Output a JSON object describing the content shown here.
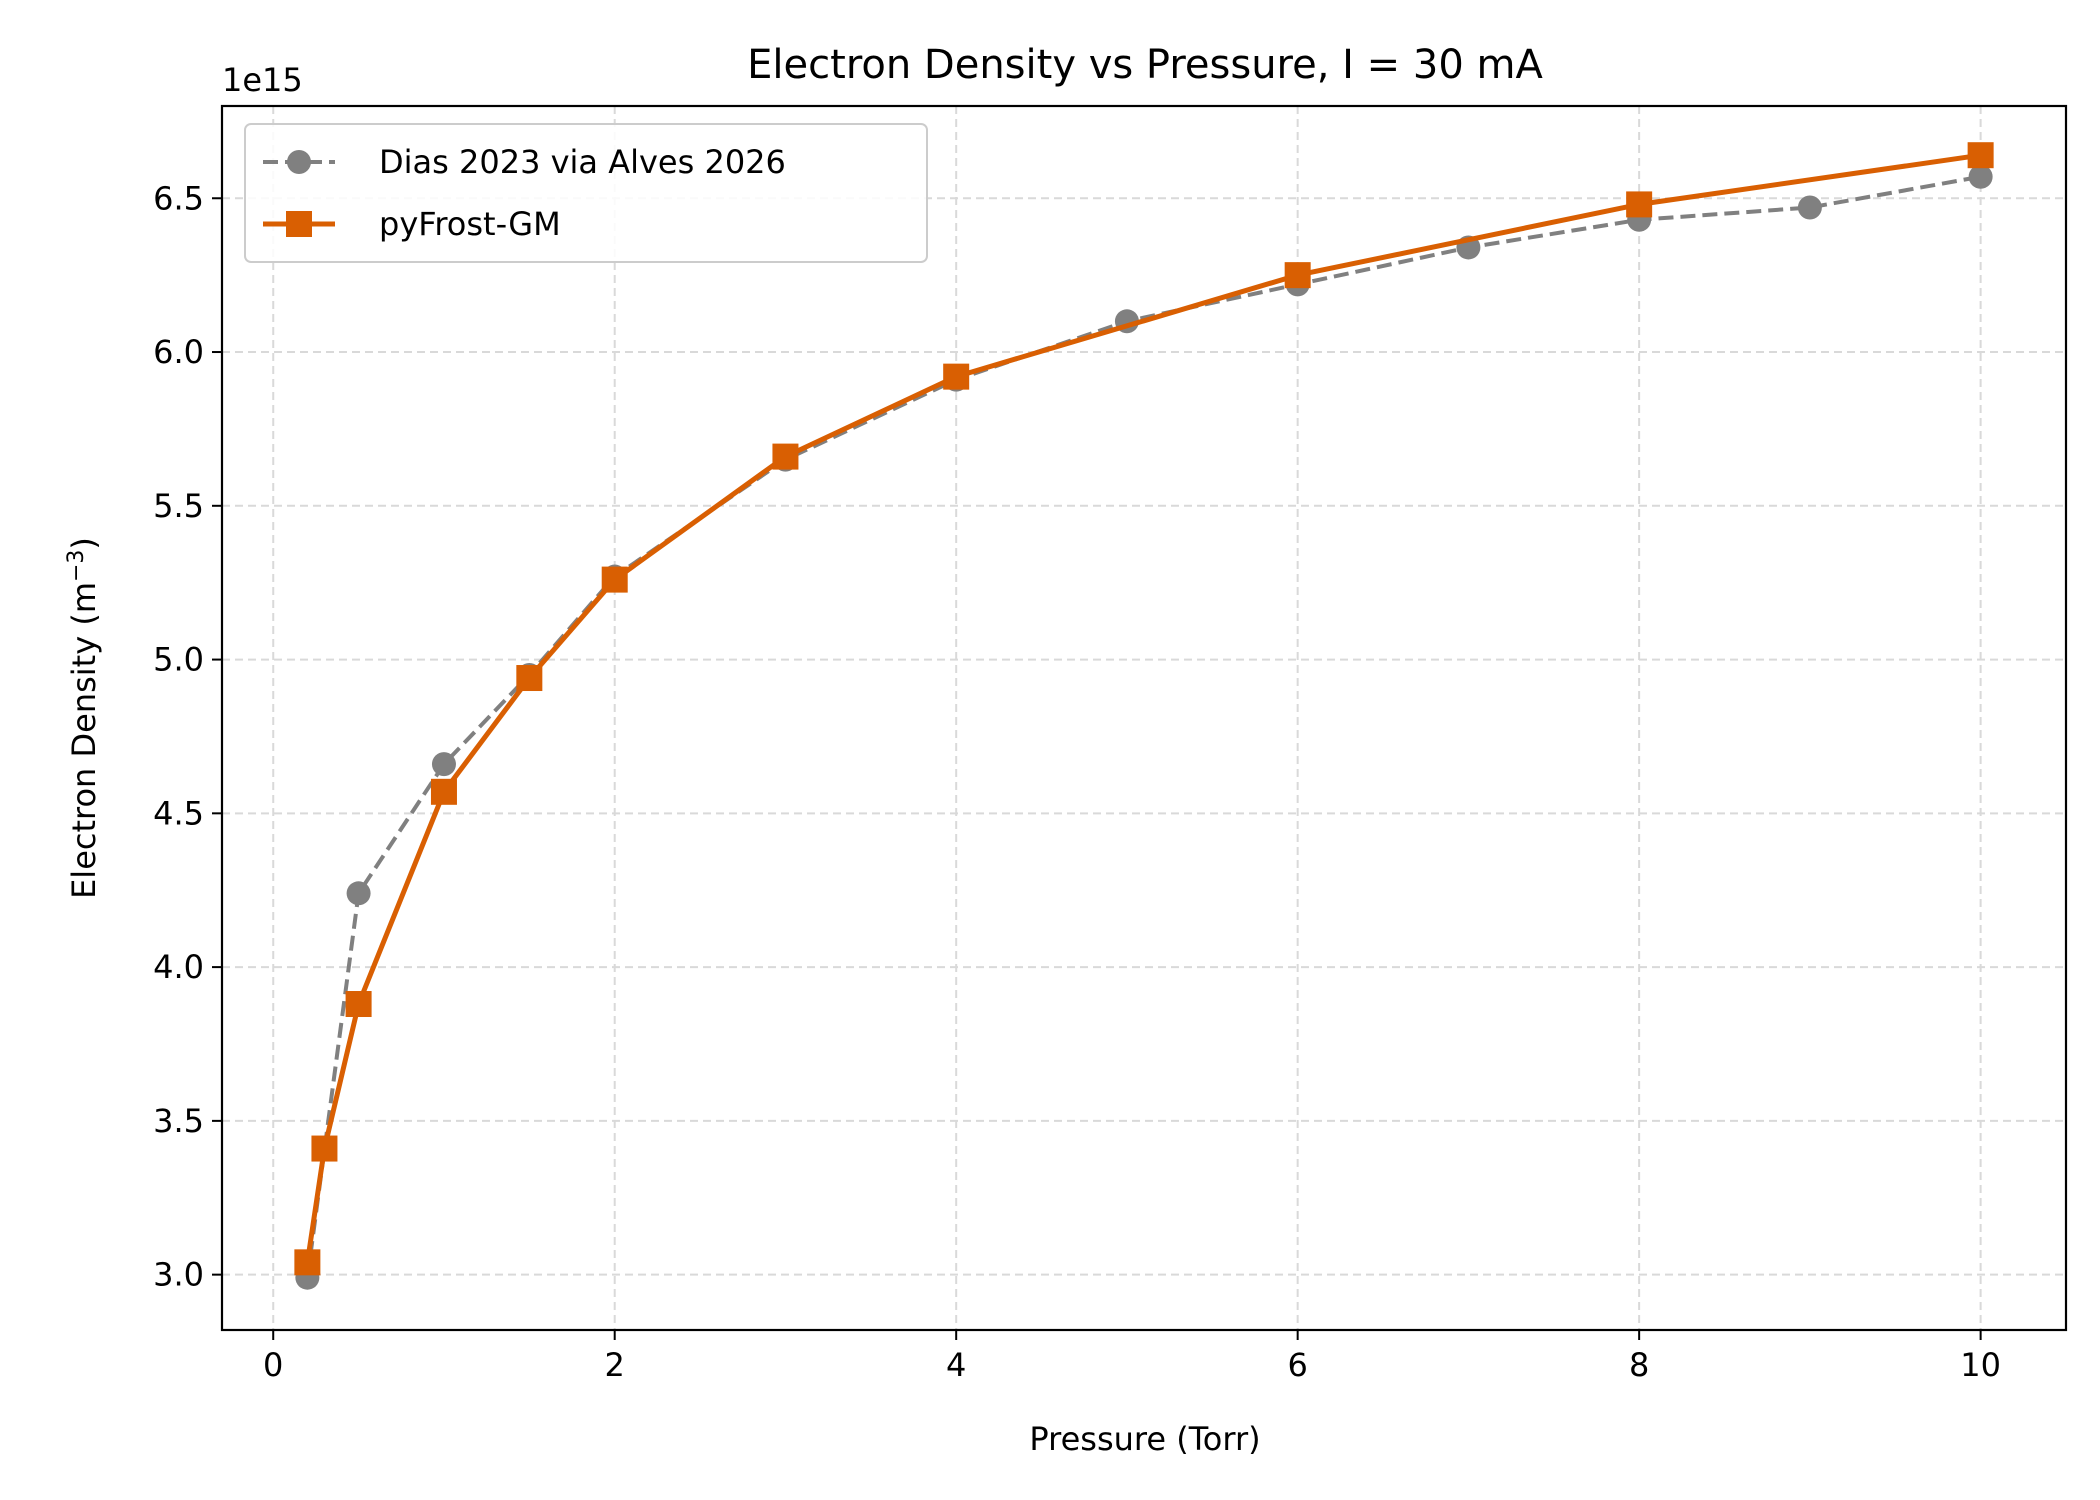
{
  "chart_data": {
    "type": "line",
    "title": "Electron Density vs Pressure, I = 30 mA",
    "xlabel": "Pressure (Torr)",
    "ylabel_main": "Electron Density (m",
    "ylabel_sup": "−3",
    "ylabel_close": ")",
    "y_offset_label": "1e15",
    "xlim": [
      -0.3,
      10.5
    ],
    "ylim": [
      2.82,
      6.8
    ],
    "x_ticks": [
      0,
      2,
      4,
      6,
      8,
      10
    ],
    "x_tick_labels": [
      "0",
      "2",
      "4",
      "6",
      "8",
      "10"
    ],
    "y_ticks": [
      3.0,
      3.5,
      4.0,
      4.5,
      5.0,
      5.5,
      6.0,
      6.5
    ],
    "y_tick_labels": [
      "3.0",
      "3.5",
      "4.0",
      "4.5",
      "5.0",
      "5.5",
      "6.0",
      "6.5"
    ],
    "grid": true,
    "legend_position": "top-left",
    "series": [
      {
        "name": "Dias 2023 via Alves 2026",
        "color": "#808080",
        "line_style": "dashed",
        "marker": "circle",
        "x": [
          0.2,
          0.5,
          1.0,
          1.5,
          2.0,
          3.0,
          4.0,
          5.0,
          6.0,
          7.0,
          8.0,
          9.0,
          10.0
        ],
        "y": [
          2.99,
          4.24,
          4.66,
          4.95,
          5.27,
          5.65,
          5.91,
          6.1,
          6.22,
          6.34,
          6.43,
          6.47,
          6.57
        ]
      },
      {
        "name": "pyFrost-GM",
        "color": "#d95f02",
        "line_style": "solid",
        "marker": "square",
        "x": [
          0.2,
          0.3,
          0.5,
          1.0,
          1.5,
          2.0,
          3.0,
          4.0,
          6.0,
          8.0,
          10.0
        ],
        "y": [
          3.04,
          3.41,
          3.88,
          4.57,
          4.94,
          5.26,
          5.66,
          5.92,
          6.25,
          6.48,
          6.64
        ]
      }
    ]
  }
}
